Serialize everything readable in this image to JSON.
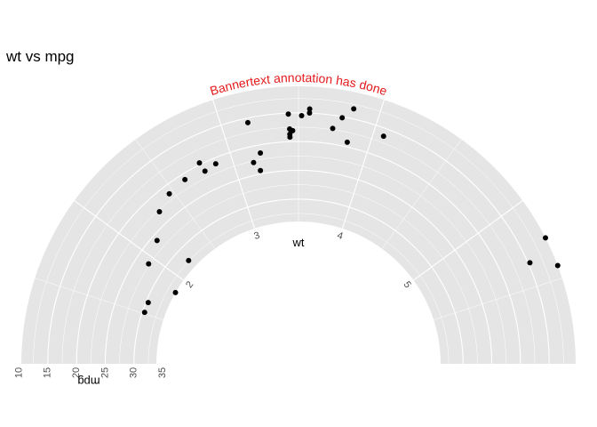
{
  "chart_data": {
    "type": "scatter",
    "coord": "polar-semicircle",
    "title": "wt vs mpg",
    "xlabel": "wt",
    "ylabel": "mpg",
    "x_label_ticks": [
      "2",
      "3",
      "4",
      "5"
    ],
    "x_tick_values": [
      2,
      3,
      4,
      5
    ],
    "x_grid_values": [
      1.5,
      2,
      2.5,
      3,
      3.5,
      4,
      4.5,
      5,
      5.5
    ],
    "xlim": [
      1.0,
      6.0
    ],
    "y_label_ticks": [
      "10",
      "15",
      "20",
      "25",
      "30",
      "35"
    ],
    "y_tick_values": [
      10,
      15,
      20,
      25,
      30,
      35
    ],
    "y_grid_values": [
      10,
      12.5,
      15,
      17.5,
      20,
      22.5,
      25,
      27.5,
      30,
      32.5,
      35
    ],
    "ylim": [
      10.4,
      33.9
    ],
    "annotation": {
      "text": "Bannertext annotation has done",
      "color": "#e41a1c"
    },
    "panel_color": "#e5e5e5",
    "grid_color": "#ffffff",
    "point_color": "#000000",
    "x": [
      2.62,
      2.875,
      2.32,
      3.215,
      3.44,
      3.46,
      3.57,
      3.19,
      3.15,
      3.44,
      3.44,
      4.07,
      3.73,
      3.78,
      5.25,
      5.424,
      5.345,
      2.2,
      1.615,
      1.835,
      2.465,
      3.52,
      3.435,
      3.84,
      3.845,
      1.935,
      2.14,
      1.513,
      3.17,
      2.77,
      3.57,
      2.78
    ],
    "y": [
      21.0,
      21.0,
      22.8,
      21.4,
      18.7,
      18.1,
      14.3,
      24.4,
      22.8,
      19.2,
      17.8,
      16.4,
      17.3,
      15.2,
      10.4,
      10.4,
      14.7,
      32.4,
      30.4,
      33.9,
      21.5,
      15.5,
      15.2,
      13.3,
      19.2,
      27.3,
      26.0,
      30.4,
      15.8,
      19.7,
      15.0,
      21.4
    ]
  }
}
